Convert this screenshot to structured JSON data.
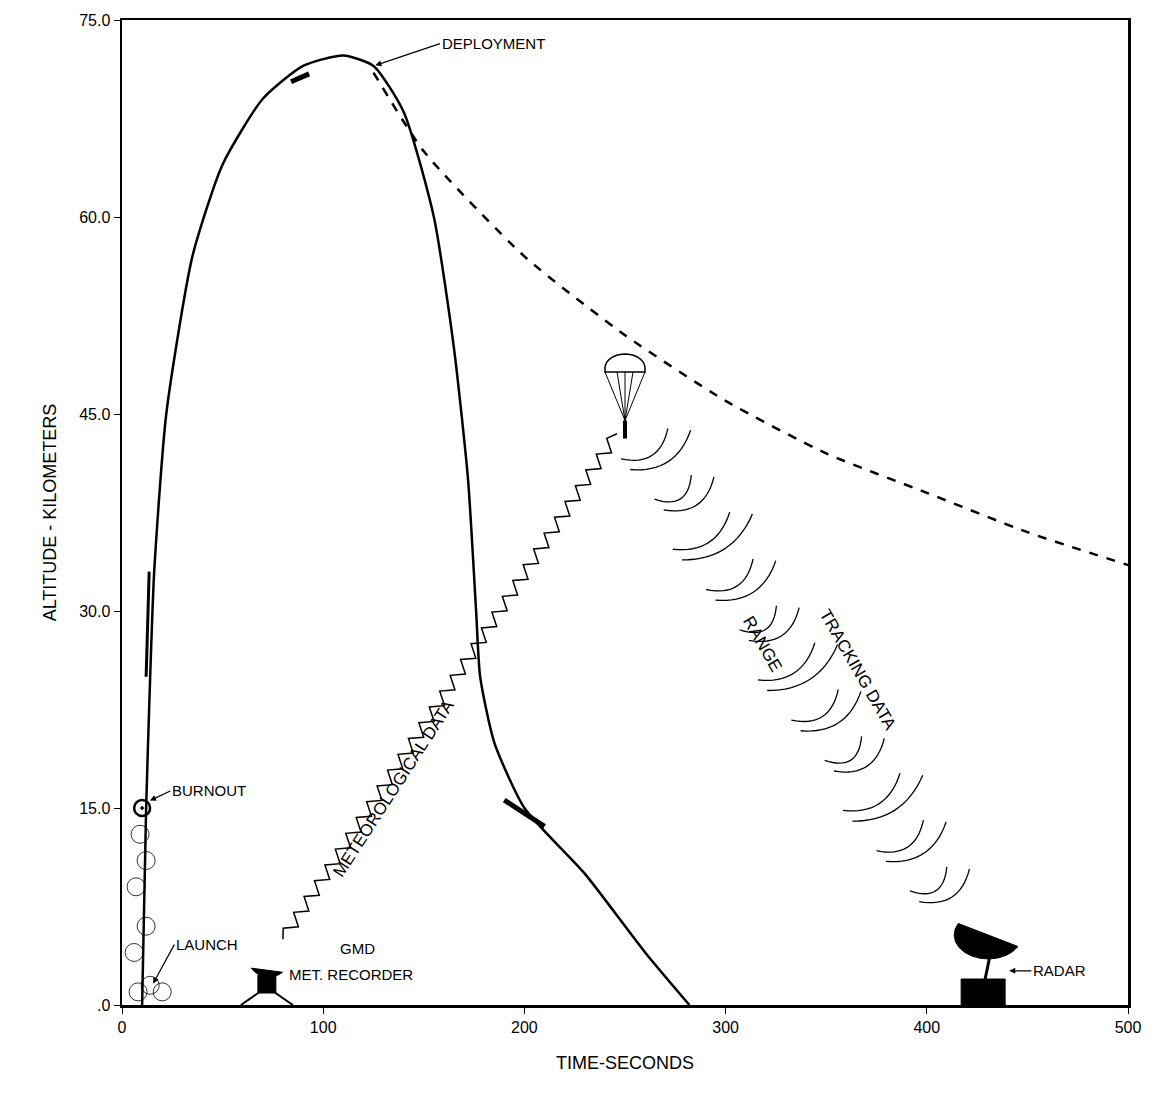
{
  "chart_data": {
    "type": "line",
    "x_label": "TIME-SECONDS",
    "y_label": "ALTITUDE - KILOMETERS",
    "xlim": [
      0,
      500
    ],
    "ylim": [
      0,
      75
    ],
    "xticks": [
      0,
      100,
      200,
      300,
      400,
      500
    ],
    "yticks": [
      {
        "value": 0,
        "label": ".0"
      },
      {
        "value": 15,
        "label": "15.0"
      },
      {
        "value": 30,
        "label": "30.0"
      },
      {
        "value": 45,
        "label": "45.0"
      },
      {
        "value": 60,
        "label": "60.0"
      },
      {
        "value": 75,
        "label": "75.0"
      }
    ],
    "grid": false,
    "series": [
      {
        "type": "line",
        "color": "#000000",
        "line_style": "solid",
        "x": [
          10,
          12,
          14,
          16,
          22,
          35,
          50,
          70,
          90,
          110,
          125,
          140,
          155,
          165,
          172,
          176,
          178,
          185,
          200,
          230,
          260,
          282
        ],
        "values": [
          0,
          15,
          25,
          33,
          45,
          57,
          64,
          69,
          71.5,
          72.3,
          71.5,
          68,
          60,
          50,
          40,
          30,
          25,
          20,
          15,
          10,
          4,
          0
        ]
      },
      {
        "type": "line",
        "color": "#000000",
        "line_style": "dash",
        "x": [
          125,
          150,
          200,
          250,
          300,
          350,
          400,
          450,
          500
        ],
        "values": [
          71,
          65,
          57,
          51,
          46,
          42,
          39,
          36,
          33.5
        ]
      },
      {
        "type": "scatter",
        "color": "#000000",
        "marker": "circle",
        "x": [
          10
        ],
        "values": [
          15
        ]
      }
    ],
    "annotations": [
      "DEPLOYMENT",
      "BURNOUT",
      "LAUNCH",
      "GMD",
      "MET. RECORDER",
      "RADAR",
      "METEOROLOGICAL DATA",
      "TRACKING DATA",
      "RANGE"
    ]
  }
}
